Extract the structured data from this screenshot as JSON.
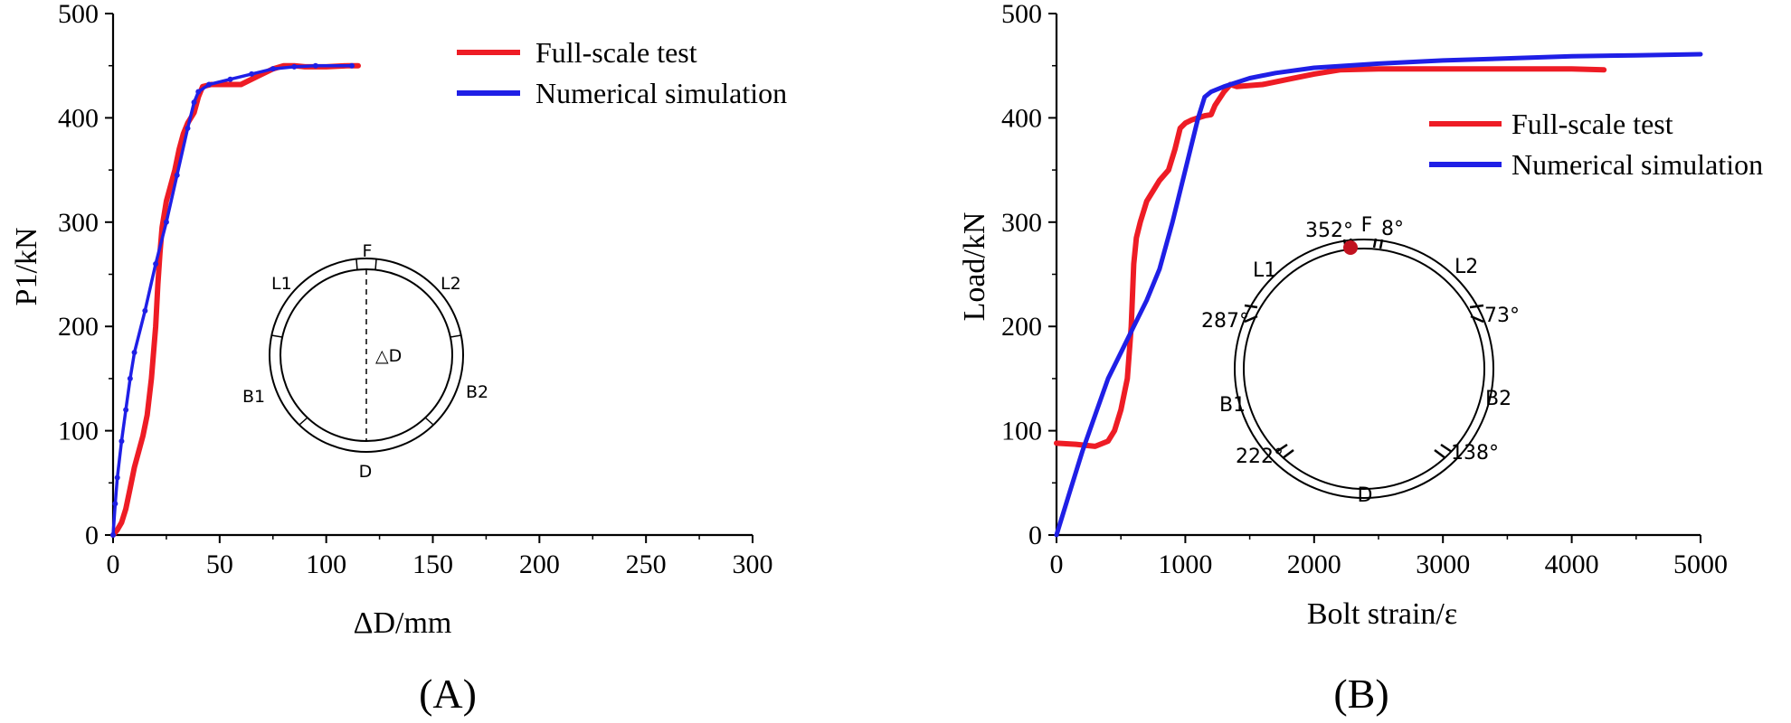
{
  "chart_data": [
    {
      "type": "line",
      "panel_label": "(A)",
      "xlabel": "ΔD/mm",
      "ylabel": "P1/kN",
      "xlim": [
        0,
        300
      ],
      "ylim": [
        0,
        500
      ],
      "xticks": [
        0,
        50,
        100,
        150,
        200,
        250,
        300
      ],
      "yticks": [
        0,
        100,
        200,
        300,
        400,
        500
      ],
      "grid": false,
      "legend_position": "top-right",
      "series": [
        {
          "name": "Full-scale test",
          "color": "#ee1c25",
          "points": [
            [
              0,
              0
            ],
            [
              2,
              5
            ],
            [
              4,
              12
            ],
            [
              6,
              25
            ],
            [
              8,
              45
            ],
            [
              10,
              65
            ],
            [
              12,
              80
            ],
            [
              14,
              95
            ],
            [
              16,
              115
            ],
            [
              18,
              150
            ],
            [
              20,
              200
            ],
            [
              21,
              240
            ],
            [
              22,
              270
            ],
            [
              23,
              295
            ],
            [
              25,
              320
            ],
            [
              27,
              335
            ],
            [
              29,
              350
            ],
            [
              31,
              370
            ],
            [
              33,
              385
            ],
            [
              35,
              395
            ],
            [
              38,
              405
            ],
            [
              40,
              420
            ],
            [
              42,
              430
            ],
            [
              46,
              432
            ],
            [
              50,
              432
            ],
            [
              60,
              432
            ],
            [
              68,
              440
            ],
            [
              75,
              447
            ],
            [
              80,
              450
            ],
            [
              85,
              450
            ],
            [
              90,
              449
            ],
            [
              100,
              449
            ],
            [
              110,
              450
            ],
            [
              115,
              450
            ]
          ]
        },
        {
          "name": "Numerical simulation",
          "color": "#1f1fe6",
          "points": [
            [
              0,
              0
            ],
            [
              1,
              30
            ],
            [
              2,
              55
            ],
            [
              4,
              90
            ],
            [
              6,
              120
            ],
            [
              8,
              150
            ],
            [
              10,
              175
            ],
            [
              15,
              215
            ],
            [
              20,
              260
            ],
            [
              25,
              300
            ],
            [
              30,
              345
            ],
            [
              35,
              390
            ],
            [
              38,
              415
            ],
            [
              40,
              425
            ],
            [
              45,
              432
            ],
            [
              55,
              437
            ],
            [
              65,
              442
            ],
            [
              75,
              447
            ],
            [
              85,
              449
            ],
            [
              95,
              450
            ],
            [
              112,
              450
            ]
          ]
        }
      ],
      "inset": {
        "labels": {
          "top": "F",
          "upper_left": "L1",
          "upper_right": "L2",
          "left": "B1",
          "right": "B2",
          "bottom": "D",
          "center": "△D"
        }
      }
    },
    {
      "type": "line",
      "panel_label": "(B)",
      "xlabel": "Bolt strain/ε",
      "ylabel": "Load/kN",
      "xlim": [
        0,
        5000
      ],
      "ylim": [
        0,
        500
      ],
      "xticks": [
        0,
        1000,
        2000,
        3000,
        4000,
        5000
      ],
      "yticks": [
        0,
        100,
        200,
        300,
        400,
        500
      ],
      "grid": false,
      "legend_position": "top-right",
      "series": [
        {
          "name": "Full-scale test",
          "color": "#ee1c25",
          "points": [
            [
              0,
              88
            ],
            [
              150,
              87
            ],
            [
              300,
              85
            ],
            [
              400,
              90
            ],
            [
              450,
              100
            ],
            [
              500,
              120
            ],
            [
              550,
              150
            ],
            [
              580,
              200
            ],
            [
              600,
              260
            ],
            [
              620,
              285
            ],
            [
              650,
              300
            ],
            [
              700,
              320
            ],
            [
              750,
              330
            ],
            [
              800,
              340
            ],
            [
              870,
              350
            ],
            [
              920,
              370
            ],
            [
              960,
              390
            ],
            [
              1000,
              395
            ],
            [
              1050,
              398
            ],
            [
              1100,
              400
            ],
            [
              1150,
              402
            ],
            [
              1200,
              403
            ],
            [
              1230,
              412
            ],
            [
              1300,
              425
            ],
            [
              1350,
              432
            ],
            [
              1400,
              430
            ],
            [
              1600,
              432
            ],
            [
              1800,
              437
            ],
            [
              2000,
              442
            ],
            [
              2200,
              446
            ],
            [
              2500,
              447
            ],
            [
              3000,
              447
            ],
            [
              3500,
              447
            ],
            [
              4000,
              447
            ],
            [
              4250,
              446
            ]
          ]
        },
        {
          "name": "Numerical simulation",
          "color": "#1f1fe6",
          "points": [
            [
              0,
              0
            ],
            [
              100,
              40
            ],
            [
              200,
              80
            ],
            [
              300,
              115
            ],
            [
              400,
              150
            ],
            [
              500,
              175
            ],
            [
              600,
              200
            ],
            [
              700,
              225
            ],
            [
              800,
              255
            ],
            [
              900,
              300
            ],
            [
              1000,
              350
            ],
            [
              1100,
              400
            ],
            [
              1150,
              420
            ],
            [
              1200,
              425
            ],
            [
              1300,
              430
            ],
            [
              1500,
              438
            ],
            [
              1700,
              443
            ],
            [
              2000,
              448
            ],
            [
              2500,
              452
            ],
            [
              3000,
              455
            ],
            [
              3500,
              457
            ],
            [
              4000,
              459
            ],
            [
              4500,
              460
            ],
            [
              5000,
              461
            ]
          ]
        }
      ],
      "inset": {
        "labels": {
          "top": "F",
          "upper_left": "L1",
          "upper_right": "L2",
          "left": "B1",
          "right": "B2",
          "bottom": "D",
          "angles": [
            "352°",
            "8°",
            "73°",
            "138°",
            "222°",
            "287°"
          ]
        }
      }
    }
  ]
}
